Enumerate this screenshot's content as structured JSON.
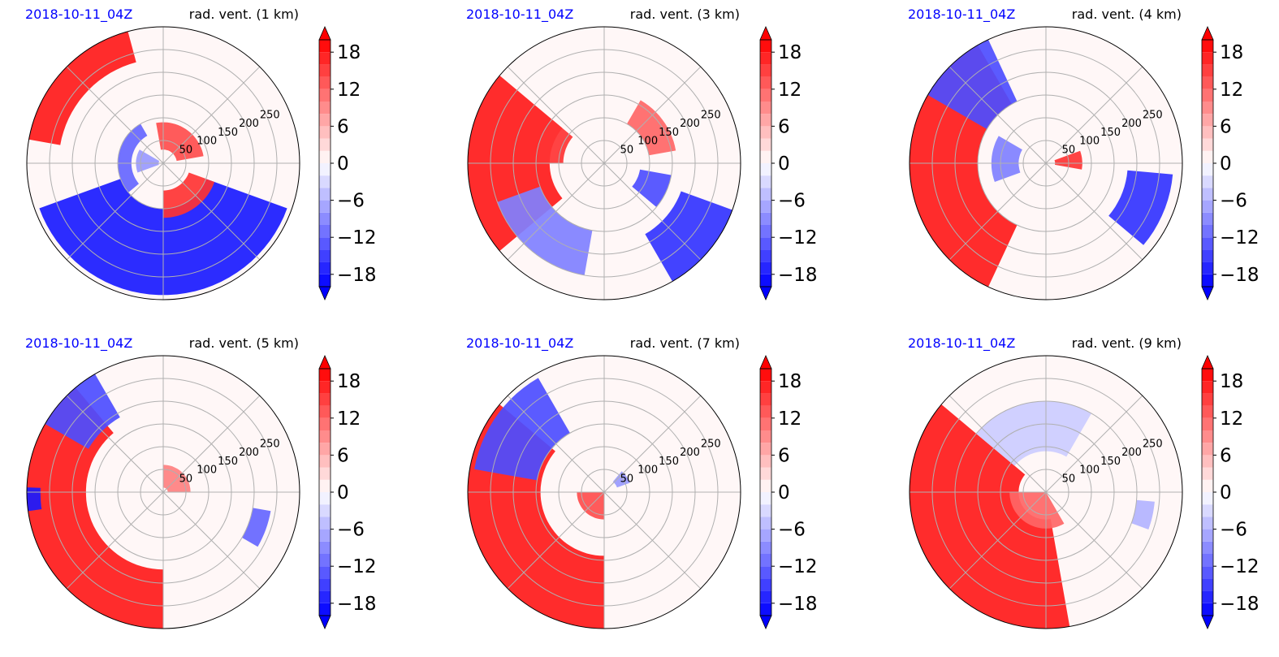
{
  "chart_data": {
    "type": "heatmap",
    "projection": "polar",
    "date_label": "2018-10-11_04Z",
    "colors": {
      "negative": "#0000ff",
      "positive": "#ff0000",
      "date_text": "#0000ff",
      "grid": "#b0b0b0"
    },
    "colorbar": {
      "range": [
        -20,
        20
      ],
      "step": 2,
      "extend": "both",
      "ticks": [
        18,
        12,
        6,
        0,
        -6,
        -12,
        -18
      ],
      "tick_labels": [
        "18",
        "12",
        "6",
        "0",
        "−6",
        "−12",
        "−18"
      ]
    },
    "radial_ticks": [
      50,
      100,
      150,
      200,
      250
    ],
    "radial_labels": [
      "50",
      "100",
      "150",
      "200",
      "250"
    ],
    "rmax": 300,
    "angular_grid_deg": 45,
    "panels": [
      {
        "title": "rad. vent. (1 km)",
        "features": [
          {
            "r": [
              70,
              100
            ],
            "theta": [
              120,
              220
            ],
            "value": -12
          },
          {
            "r": [
              100,
              290
            ],
            "theta": [
              200,
              340
            ],
            "value": -18
          },
          {
            "r": [
              30,
              90
            ],
            "theta": [
              10,
              100
            ],
            "value": 14
          },
          {
            "r": [
              60,
              120
            ],
            "theta": [
              270,
              340
            ],
            "value": 16
          },
          {
            "r": [
              230,
              300
            ],
            "theta": [
              105,
              170
            ],
            "value": 18
          },
          {
            "r": [
              10,
              60
            ],
            "theta": [
              150,
              200
            ],
            "value": -8
          }
        ]
      },
      {
        "title": "rad. vent. (3 km)",
        "features": [
          {
            "r": [
              120,
              300
            ],
            "theta": [
              140,
              220
            ],
            "value": 18
          },
          {
            "r": [
              90,
              150
            ],
            "theta": [
              140,
              180
            ],
            "value": 16
          },
          {
            "r": [
              80,
              150
            ],
            "theta": [
              320,
              350
            ],
            "value": -14
          },
          {
            "r": [
              180,
              300
            ],
            "theta": [
              300,
              340
            ],
            "value": -16
          },
          {
            "r": [
              150,
              250
            ],
            "theta": [
              200,
              260
            ],
            "value": -10
          },
          {
            "r": [
              100,
              160
            ],
            "theta": [
              10,
              60
            ],
            "value": 12
          }
        ]
      },
      {
        "title": "rad. vent. (4 km)",
        "features": [
          {
            "r": [
              150,
              300
            ],
            "theta": [
              120,
              245
            ],
            "value": 18
          },
          {
            "r": [
              150,
              300
            ],
            "theta": [
              115,
              150
            ],
            "value": -14
          },
          {
            "r": [
              180,
              280
            ],
            "theta": [
              320,
              355
            ],
            "value": -16
          },
          {
            "r": [
              20,
              80
            ],
            "theta": [
              350,
              20
            ],
            "value": 16
          },
          {
            "r": [
              60,
              120
            ],
            "theta": [
              150,
              200
            ],
            "value": -10
          }
        ]
      },
      {
        "title": "rad. vent. (5 km)",
        "features": [
          {
            "r": [
              170,
              300
            ],
            "theta": [
              130,
              270
            ],
            "value": 18
          },
          {
            "r": [
              190,
              300
            ],
            "theta": [
              120,
              150
            ],
            "value": -14
          },
          {
            "r": [
              270,
              300
            ],
            "theta": [
              178,
              188
            ],
            "value": -18
          },
          {
            "r": [
              200,
              240
            ],
            "theta": [
              330,
              350
            ],
            "value": -12
          },
          {
            "r": [
              10,
              60
            ],
            "theta": [
              0,
              90
            ],
            "value": 10
          }
        ]
      },
      {
        "title": "rad. vent. (7 km)",
        "features": [
          {
            "r": [
              140,
              300
            ],
            "theta": [
              140,
              270
            ],
            "value": 18
          },
          {
            "r": [
              150,
              290
            ],
            "theta": [
              120,
              170
            ],
            "value": -14
          },
          {
            "r": [
              0,
              60
            ],
            "theta": [
              180,
              270
            ],
            "value": 14
          },
          {
            "r": [
              30,
              60
            ],
            "theta": [
              20,
              50
            ],
            "value": -8
          }
        ]
      },
      {
        "title": "rad. vent. (9 km)",
        "features": [
          {
            "r": [
              60,
              300
            ],
            "theta": [
              140,
              280
            ],
            "value": 18
          },
          {
            "r": [
              0,
              80
            ],
            "theta": [
              180,
              300
            ],
            "value": 12
          },
          {
            "r": [
              90,
              200
            ],
            "theta": [
              60,
              140
            ],
            "value": -4
          },
          {
            "r": [
              200,
              240
            ],
            "theta": [
              340,
              355
            ],
            "value": -6
          }
        ]
      }
    ]
  }
}
